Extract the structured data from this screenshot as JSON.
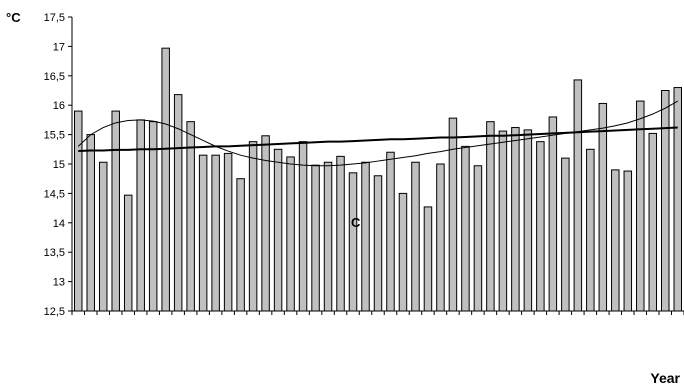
{
  "chart_data": {
    "type": "bar",
    "y_unit": "°C",
    "xlabel": "Year",
    "ylim": [
      12.5,
      17.5
    ],
    "yticks": [
      "17,5",
      "17",
      "16,5",
      "16",
      "15,5",
      "15",
      "14,5",
      "14",
      "13,5",
      "13",
      "12,5"
    ],
    "bar_color": "#c0c0c0",
    "annotation": "C",
    "values": [
      15.9,
      15.5,
      15.03,
      15.9,
      14.47,
      15.75,
      15.72,
      16.97,
      16.18,
      15.72,
      15.15,
      15.15,
      15.18,
      14.75,
      15.38,
      15.48,
      15.25,
      15.12,
      15.38,
      14.98,
      15.03,
      15.13,
      14.85,
      15.03,
      14.8,
      15.2,
      14.5,
      15.03,
      14.27,
      15.0,
      15.78,
      15.3,
      14.97,
      15.72,
      15.56,
      15.62,
      15.58,
      15.38,
      15.8,
      15.1,
      16.43,
      15.25,
      16.03,
      14.9,
      14.88,
      16.07,
      15.52,
      16.25,
      16.3
    ],
    "series": [
      {
        "style": "thick-line",
        "values": [
          15.22,
          15.23,
          15.23,
          15.24,
          15.24,
          15.25,
          15.25,
          15.26,
          15.27,
          15.28,
          15.29,
          15.3,
          15.3,
          15.31,
          15.32,
          15.33,
          15.34,
          15.35,
          15.36,
          15.37,
          15.38,
          15.38,
          15.39,
          15.4,
          15.41,
          15.42,
          15.42,
          15.43,
          15.44,
          15.45,
          15.45,
          15.46,
          15.47,
          15.48,
          15.48,
          15.49,
          15.5,
          15.51,
          15.52,
          15.53,
          15.54,
          15.55,
          15.56,
          15.57,
          15.58,
          15.59,
          15.6,
          15.61,
          15.62
        ]
      },
      {
        "style": "thin-line",
        "values": [
          15.3,
          15.5,
          15.62,
          15.7,
          15.74,
          15.75,
          15.73,
          15.68,
          15.6,
          15.5,
          15.4,
          15.3,
          15.22,
          15.15,
          15.1,
          15.06,
          15.03,
          15.0,
          14.98,
          14.97,
          14.97,
          14.98,
          15.0,
          15.02,
          15.05,
          15.08,
          15.11,
          15.14,
          15.18,
          15.21,
          15.25,
          15.28,
          15.31,
          15.34,
          15.37,
          15.4,
          15.43,
          15.46,
          15.49,
          15.52,
          15.55,
          15.58,
          15.61,
          15.65,
          15.7,
          15.77,
          15.85,
          15.95,
          16.07
        ]
      }
    ]
  }
}
